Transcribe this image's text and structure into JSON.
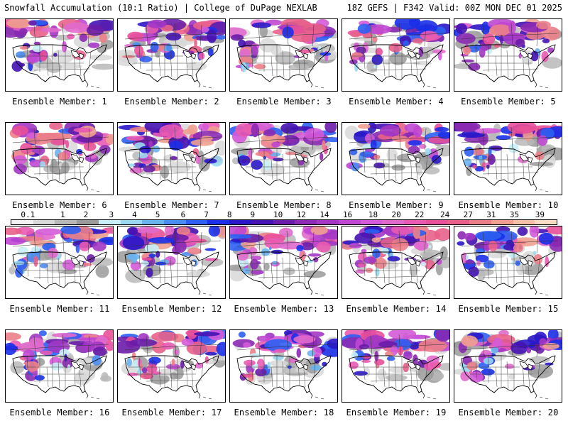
{
  "header": {
    "left": "Snowfall Accumulation (10:1 Ratio) | College of DuPage NEXLAB",
    "right": "18Z GEFS | F342 Valid: 00Z MON DEC 01 2025"
  },
  "panels": [
    {
      "label": "Ensemble Member: 1"
    },
    {
      "label": "Ensemble Member: 2"
    },
    {
      "label": "Ensemble Member: 3"
    },
    {
      "label": "Ensemble Member: 4"
    },
    {
      "label": "Ensemble Member: 5"
    },
    {
      "label": "Ensemble Member: 6"
    },
    {
      "label": "Ensemble Member: 7"
    },
    {
      "label": "Ensemble Member: 8"
    },
    {
      "label": "Ensemble Member: 9"
    },
    {
      "label": "Ensemble Member: 10"
    },
    {
      "label": "Ensemble Member: 11"
    },
    {
      "label": "Ensemble Member: 12"
    },
    {
      "label": "Ensemble Member: 13"
    },
    {
      "label": "Ensemble Member: 14"
    },
    {
      "label": "Ensemble Member: 15"
    },
    {
      "label": "Ensemble Member: 16"
    },
    {
      "label": "Ensemble Member: 17"
    },
    {
      "label": "Ensemble Member: 18"
    },
    {
      "label": "Ensemble Member: 19"
    },
    {
      "label": "Ensemble Member: 20"
    }
  ],
  "colorbar": {
    "labels": [
      "0.1",
      "1",
      "2",
      "3",
      "4",
      "5",
      "6",
      "7",
      "8",
      "9",
      "10",
      "12",
      "14",
      "16",
      "18",
      "20",
      "22",
      "24",
      "27",
      "31",
      "35",
      "39"
    ],
    "colors": [
      "#f2f2f2",
      "#d8d8d8",
      "#b8b8b8",
      "#9a9a9a",
      "#c9f0f6",
      "#9ad8f0",
      "#6ab4ee",
      "#4a8cf0",
      "#2e5ff2",
      "#1b2fe8",
      "#2a17c8",
      "#4512b4",
      "#6a1ca8",
      "#8b2ab2",
      "#a337c4",
      "#c047d2",
      "#d45ad8",
      "#e06acc",
      "#e95ab2",
      "#e8509a",
      "#e8608a",
      "#eb7f88",
      "#f0a090",
      "#f5c0a6",
      "#f9dcc4"
    ]
  }
}
